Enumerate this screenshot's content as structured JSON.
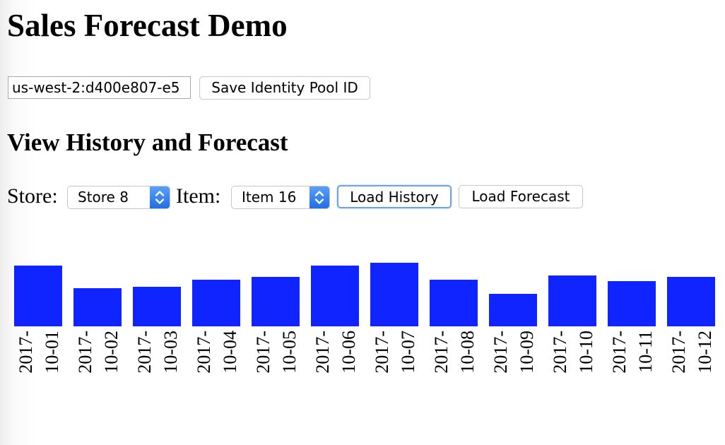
{
  "page": {
    "title": "Sales Forecast Demo",
    "section_heading": "View History and Forecast"
  },
  "identity_pool": {
    "value": "us-west-2:d400e807-e5",
    "save_label": "Save Identity Pool ID"
  },
  "controls": {
    "store_label": "Store:",
    "store_selected": "Store 8",
    "item_label": "Item:",
    "item_selected": "Item 16",
    "load_history_label": "Load History",
    "load_forecast_label": "Load Forecast"
  },
  "icons": {
    "select_arrow": "chevron-up-down-icon"
  },
  "colors": {
    "bar": "#1024ff",
    "select_accent": "#2f7ff0",
    "focus_ring": "#6ea3e8"
  },
  "chart_data": {
    "type": "bar",
    "categories": [
      "2017-10-01",
      "2017-10-02",
      "2017-10-03",
      "2017-10-04",
      "2017-10-05",
      "2017-10-06",
      "2017-10-07",
      "2017-10-08",
      "2017-10-09",
      "2017-10-10",
      "2017-10-11",
      "2017-10-12"
    ],
    "category_lines": [
      [
        "2017-",
        "10-01"
      ],
      [
        "2017-",
        "10-02"
      ],
      [
        "2017-",
        "10-03"
      ],
      [
        "2017-",
        "10-04"
      ],
      [
        "2017-",
        "10-05"
      ],
      [
        "2017-",
        "10-06"
      ],
      [
        "2017-",
        "10-07"
      ],
      [
        "2017-",
        "10-08"
      ],
      [
        "2017-",
        "10-09"
      ],
      [
        "2017-",
        "10-10"
      ],
      [
        "2017-",
        "10-11"
      ],
      [
        "2017-",
        "10-12"
      ]
    ],
    "values": [
      86,
      54,
      56,
      66,
      70,
      86,
      90,
      66,
      46,
      72,
      64,
      70
    ],
    "ylim": [
      0,
      90
    ],
    "title": "",
    "xlabel": "",
    "ylabel": "",
    "grid": false,
    "legend": "none"
  }
}
